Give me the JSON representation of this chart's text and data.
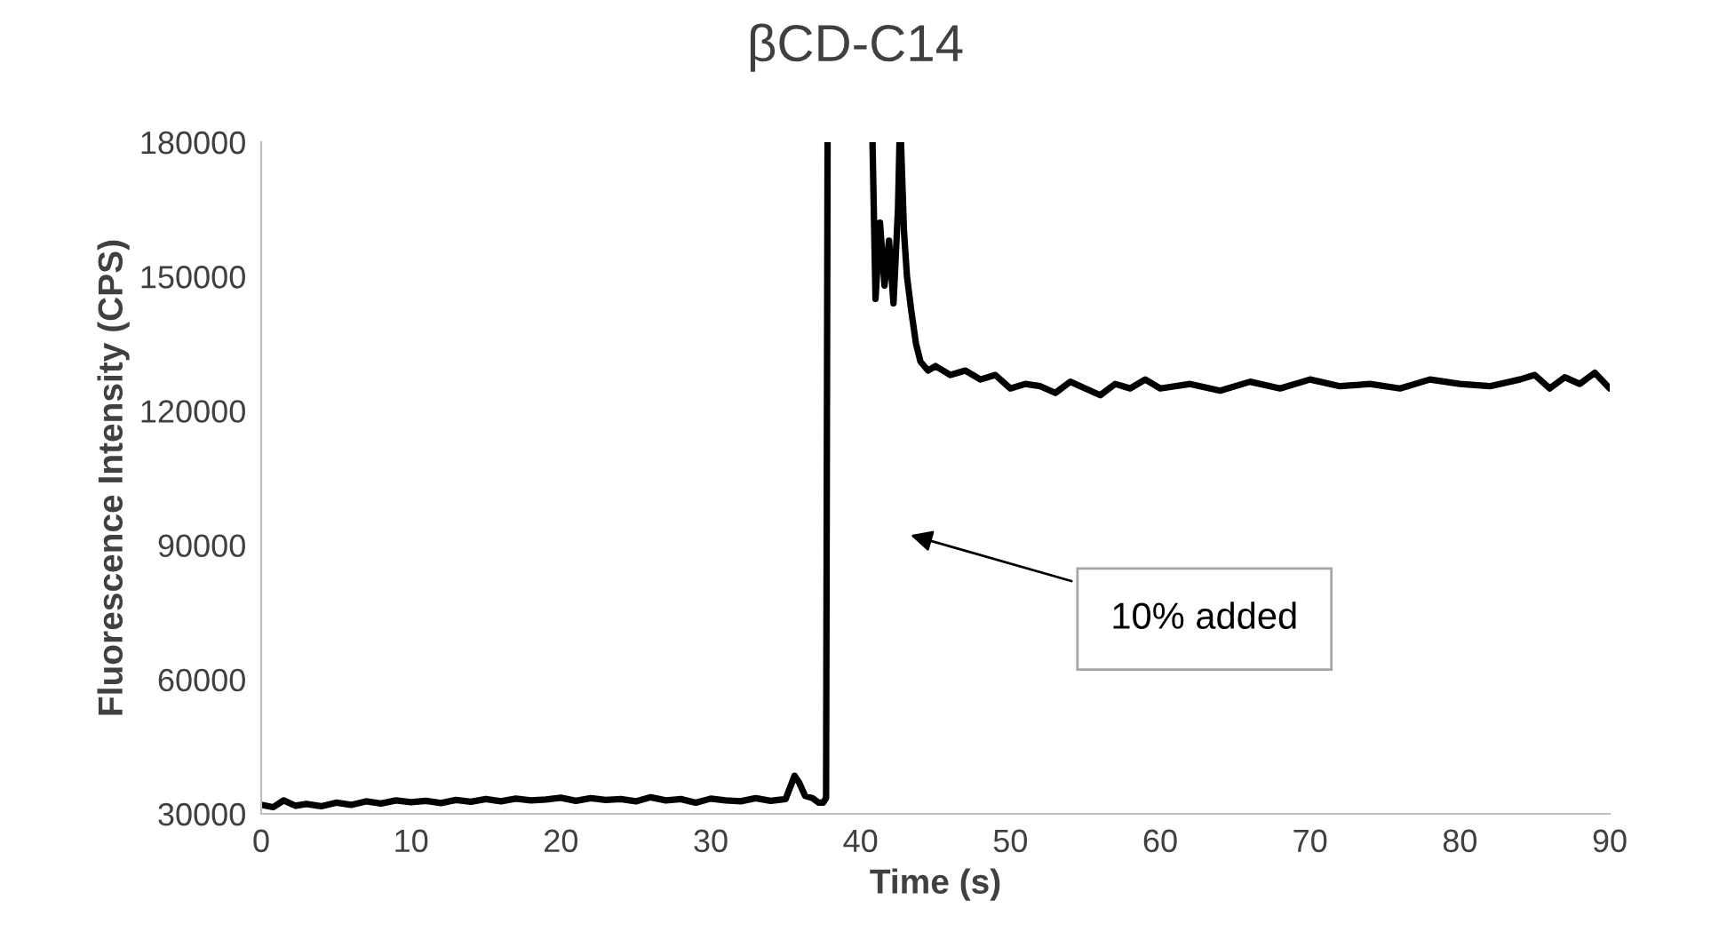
{
  "chart_data": {
    "type": "line",
    "title": "βCD-C14",
    "xlabel": "Time (s)",
    "ylabel": "Fluorescence Intensity (CPS)",
    "annotations": [
      "10% added"
    ],
    "x": [
      0,
      0.8,
      1.5,
      2.3,
      3,
      4,
      5,
      6,
      7,
      8,
      9,
      10,
      11,
      12,
      13,
      14,
      15,
      16,
      17,
      18,
      19,
      20,
      21,
      22,
      23,
      24,
      25,
      26,
      27,
      28,
      29,
      30,
      31,
      32,
      33,
      34,
      35,
      35.6,
      35.9,
      36.3,
      36.8,
      37.2,
      37.5,
      37.7,
      37.8,
      39,
      40.8,
      41,
      41.3,
      41.6,
      41.9,
      42.2,
      42.5,
      42.6,
      42.7,
      42.9,
      43.1,
      43.4,
      43.7,
      44,
      44.5,
      45,
      46,
      47,
      48,
      49,
      50,
      51,
      52,
      53,
      54,
      55,
      56,
      57,
      58,
      59,
      60,
      62,
      64,
      66,
      68,
      70,
      72,
      74,
      76,
      78,
      80,
      82,
      84,
      85,
      86,
      87,
      88,
      89,
      90
    ],
    "series": [
      {
        "color": "#000000",
        "values": [
          32000,
          31500,
          33000,
          31800,
          32200,
          31700,
          32500,
          32000,
          32800,
          32300,
          33000,
          32600,
          32900,
          32400,
          33100,
          32700,
          33300,
          32800,
          33400,
          33000,
          33200,
          33600,
          32900,
          33500,
          33100,
          33300,
          32800,
          33700,
          33000,
          33300,
          32500,
          33400,
          33000,
          32800,
          33500,
          32900,
          33300,
          38500,
          37000,
          34000,
          33500,
          32500,
          32500,
          33500,
          180000,
          null,
          180000,
          145000,
          162000,
          148000,
          158000,
          144000,
          165000,
          180000,
          180000,
          160000,
          150000,
          142000,
          135000,
          131000,
          129000,
          130000,
          128000,
          129000,
          127000,
          128000,
          125000,
          126000,
          125500,
          124000,
          126500,
          125000,
          123500,
          126000,
          125000,
          127000,
          125000,
          126000,
          124500,
          126500,
          125000,
          127000,
          125500,
          126000,
          125000,
          127000,
          126000,
          125500,
          127000,
          128000,
          125000,
          127500,
          126000,
          128500,
          125000
        ]
      }
    ],
    "xlim": [
      0,
      90
    ],
    "xticks": [
      0,
      10,
      20,
      30,
      40,
      50,
      60,
      70,
      80,
      90
    ],
    "ylim": [
      30000,
      180000
    ],
    "yticks": [
      30000,
      60000,
      90000,
      120000,
      150000,
      180000
    ],
    "grid": false,
    "marker": "none",
    "line_style": "solid"
  }
}
